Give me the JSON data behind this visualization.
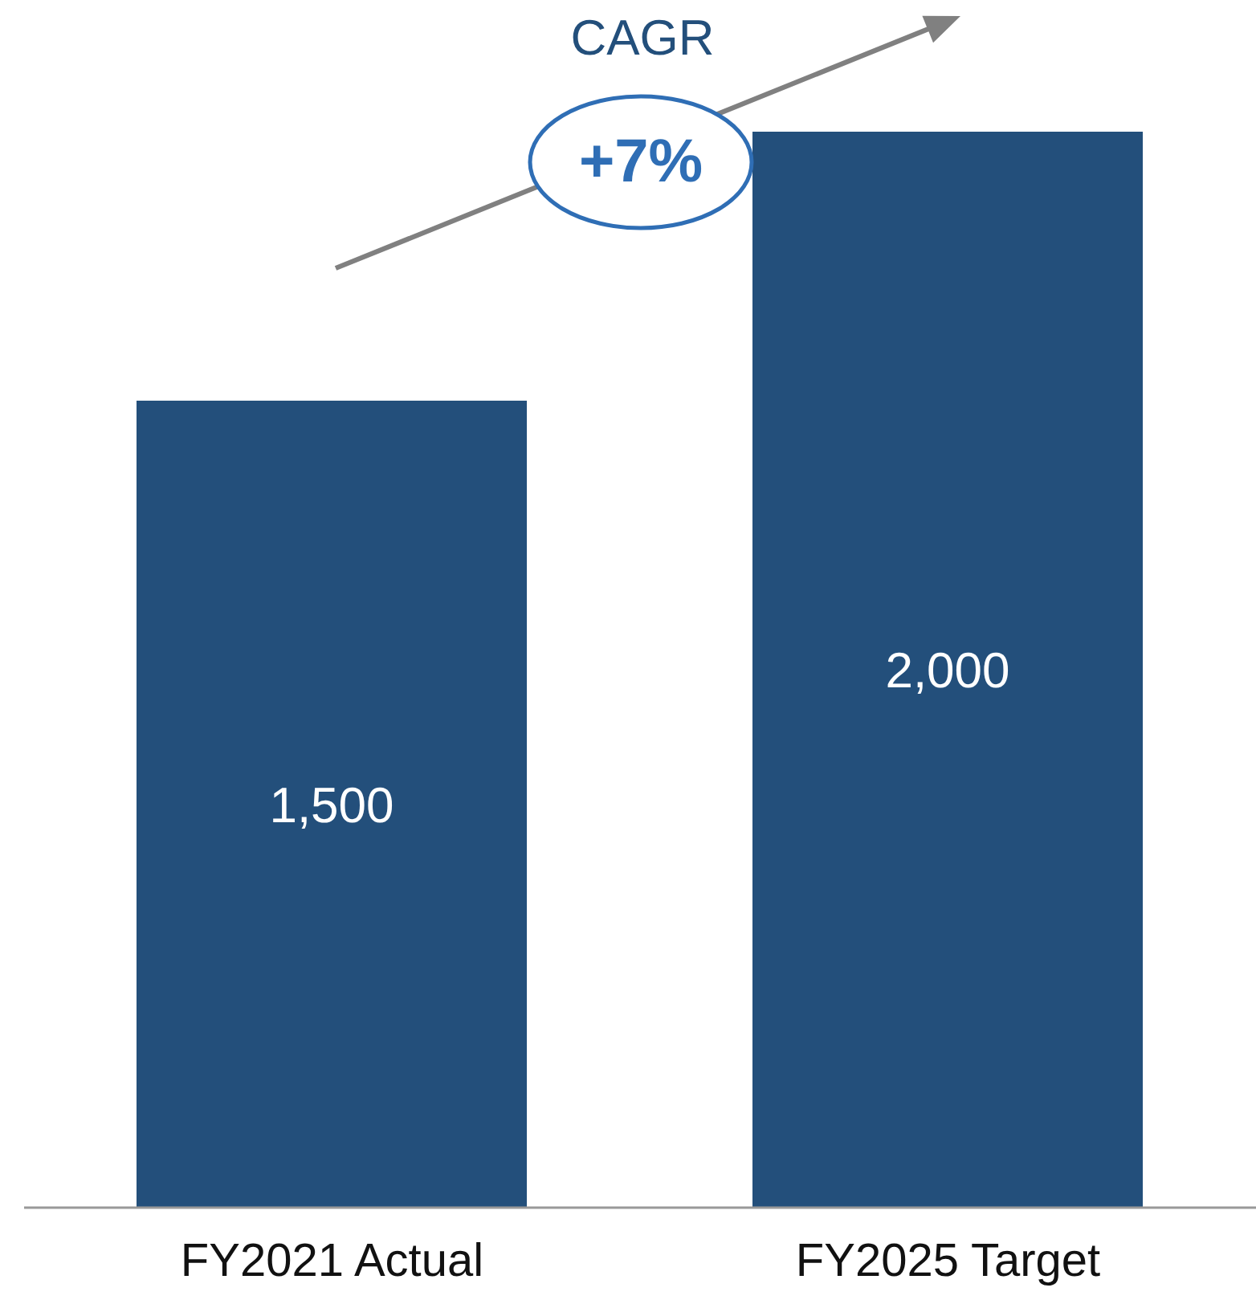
{
  "chart_data": {
    "type": "bar",
    "categories": [
      "FY2021 Actual",
      "FY2025 Target"
    ],
    "values": [
      1500,
      2000
    ],
    "value_labels": [
      "1,500",
      "2,000"
    ],
    "color": "#234f7b",
    "annotations": [
      "CAGR",
      "+7%"
    ]
  }
}
